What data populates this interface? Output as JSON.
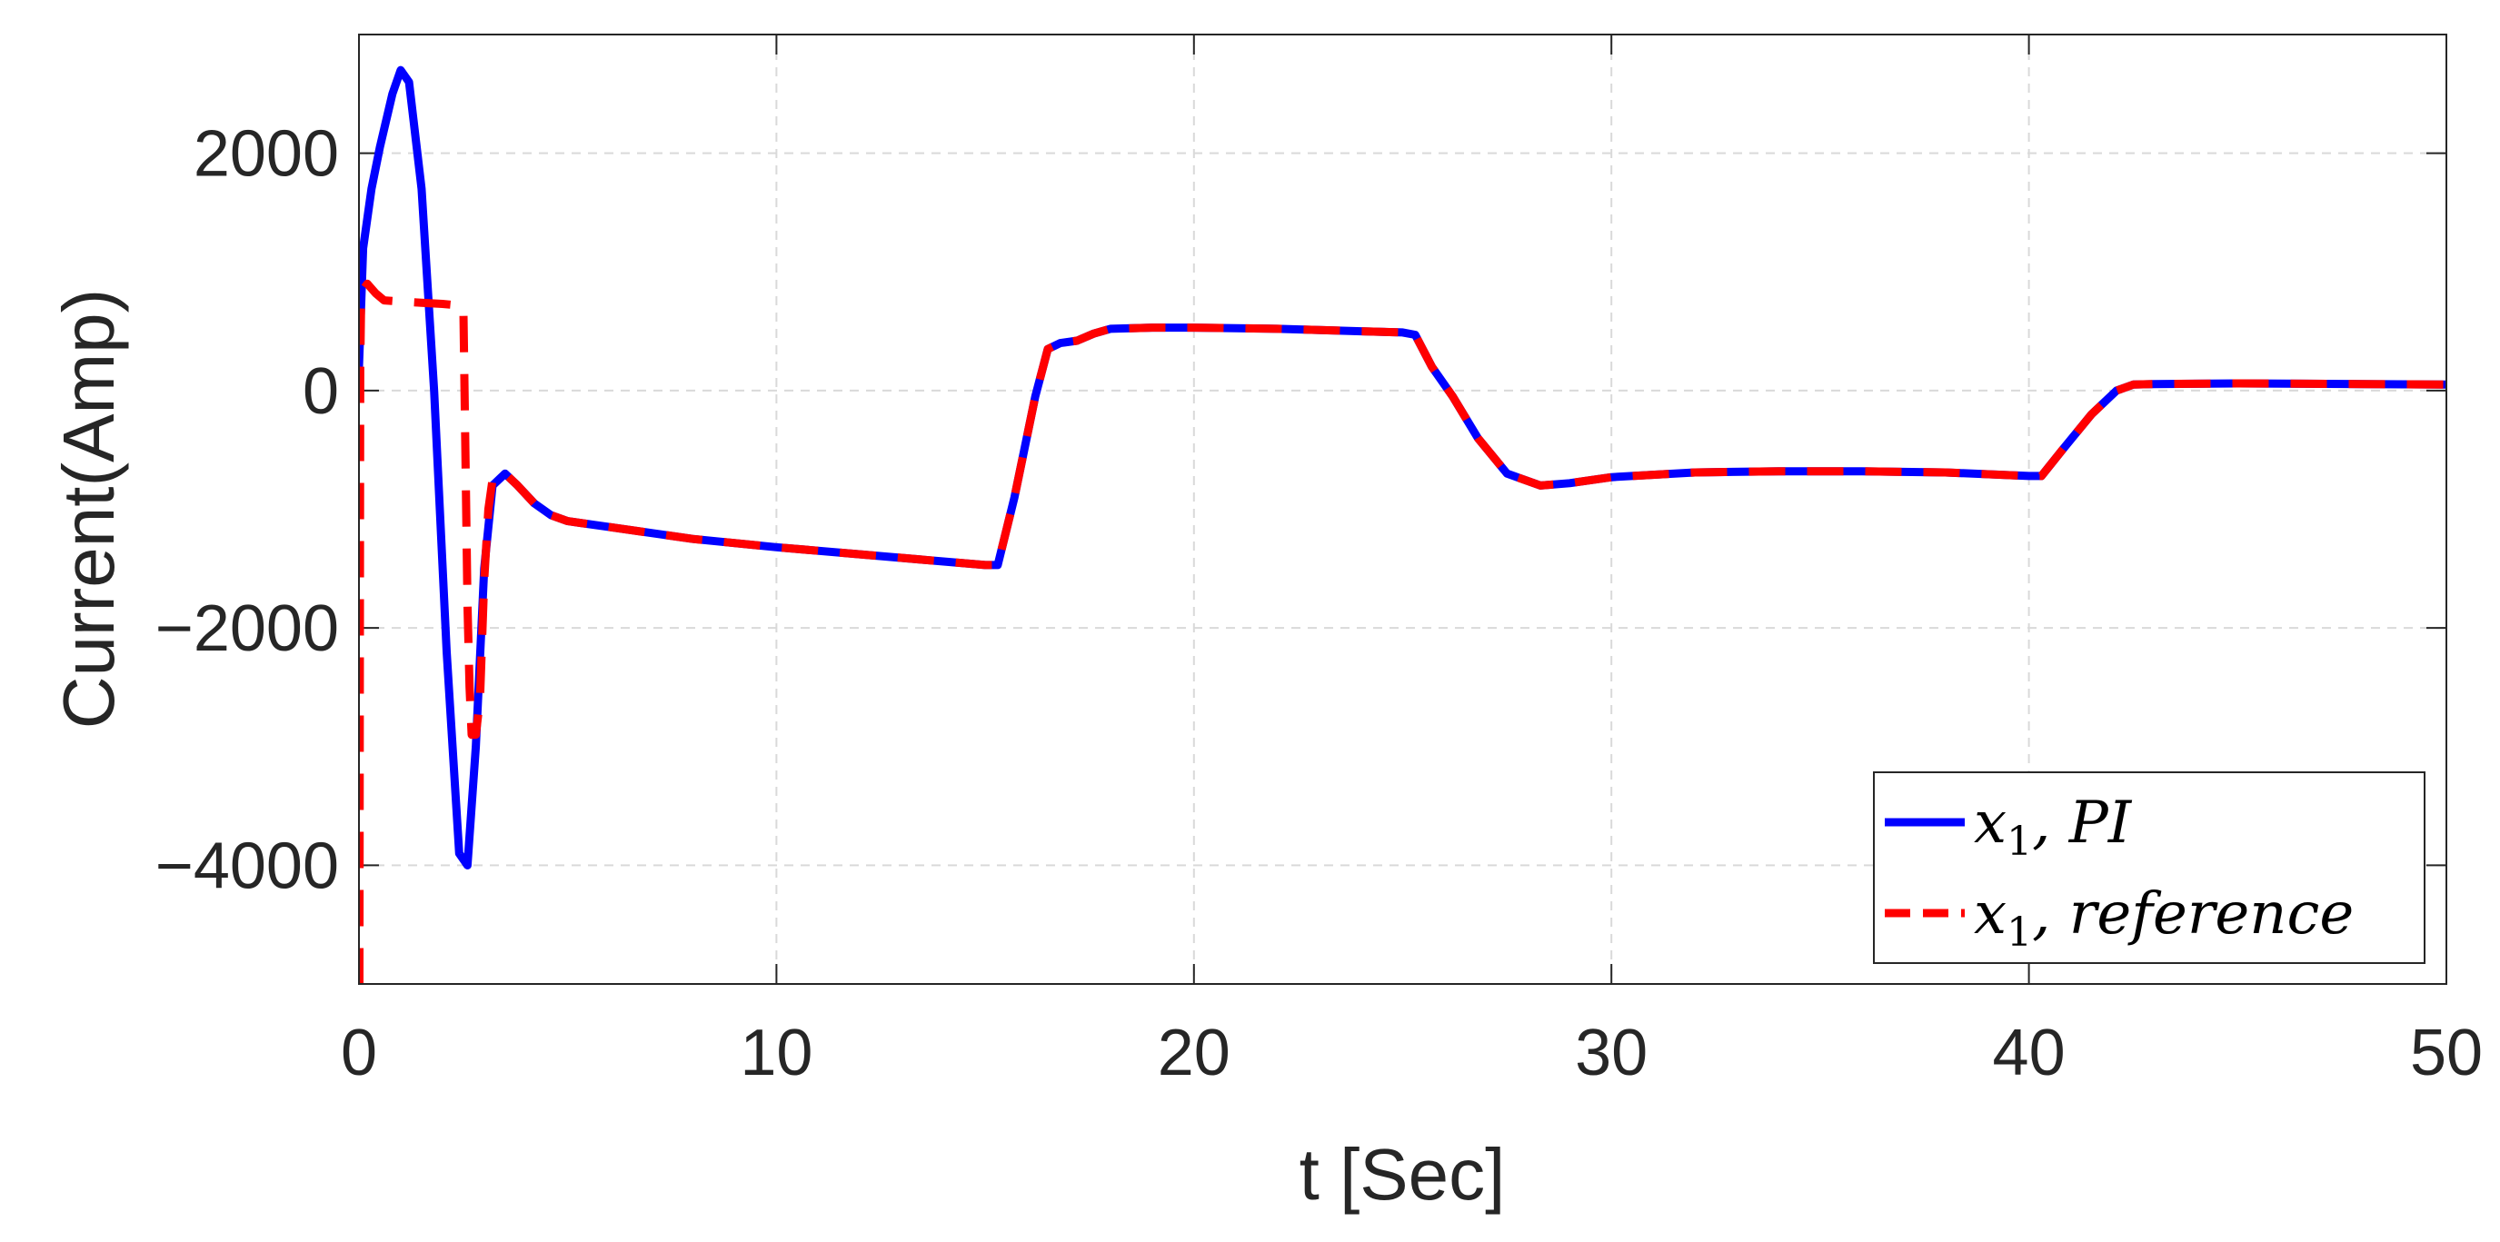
{
  "chart_data": {
    "type": "line",
    "title": "",
    "xlabel": "t [Sec]",
    "ylabel": "Current(Amp)",
    "xlim": [
      0,
      50
    ],
    "ylim": [
      -5000,
      3000
    ],
    "xticks": [
      0,
      10,
      20,
      30,
      40,
      50
    ],
    "xtick_labels": [
      "0",
      "10",
      "20",
      "30",
      "40",
      "50"
    ],
    "yticks": [
      -4000,
      -2000,
      0,
      2000
    ],
    "ytick_labels": [
      "−4000",
      "−2000",
      "0",
      "2000"
    ],
    "grid": true,
    "legend_position": "bottom-right",
    "series": [
      {
        "name": "x1, PI",
        "legend_main": "x",
        "legend_sub": "1",
        "legend_rest": ", PI",
        "color": "#0000ff",
        "style": "solid",
        "x": [
          0,
          0.1,
          0.3,
          0.5,
          0.8,
          1.0,
          1.2,
          1.5,
          1.8,
          2.1,
          2.4,
          2.6,
          2.8,
          3.0,
          3.2,
          3.5,
          3.8,
          4.2,
          4.6,
          5.0,
          6,
          8,
          10,
          12,
          14,
          15,
          15.3,
          15.7,
          16.2,
          16.5,
          16.8,
          17.2,
          17.6,
          18.0,
          19,
          20,
          22,
          24,
          25,
          25.3,
          25.7,
          26.2,
          26.8,
          27.5,
          28.3,
          29,
          30,
          32,
          34,
          36,
          38,
          40,
          40.3,
          40.8,
          41.5,
          42.1,
          42.5,
          43,
          45,
          48,
          50
        ],
        "y": [
          200,
          1200,
          1700,
          2050,
          2500,
          2700,
          2600,
          1700,
          0,
          -2200,
          -3900,
          -4000,
          -3000,
          -1500,
          -800,
          -700,
          -800,
          -950,
          -1050,
          -1100,
          -1150,
          -1250,
          -1320,
          -1380,
          -1440,
          -1470,
          -1470,
          -900,
          -50,
          350,
          400,
          420,
          480,
          520,
          530,
          530,
          520,
          500,
          490,
          470,
          200,
          -50,
          -400,
          -700,
          -800,
          -780,
          -730,
          -690,
          -680,
          -680,
          -690,
          -720,
          -720,
          -500,
          -200,
          0,
          50,
          55,
          60,
          55,
          50
        ]
      },
      {
        "name": "x1, reference",
        "legend_main": "x",
        "legend_sub": "1",
        "legend_rest": ", reference",
        "color": "#ff0000",
        "style": "dashed",
        "x": [
          0.0,
          0.01,
          0.03,
          0.05,
          0.1,
          0.2,
          0.4,
          0.6,
          1.0,
          1.5,
          2.0,
          2.3,
          2.5,
          2.55,
          2.6,
          2.65,
          2.7,
          2.8,
          2.9,
          3.0,
          3.1,
          3.2,
          3.5,
          3.8,
          4.2,
          4.6,
          5.0,
          6,
          8,
          10,
          12,
          14,
          15,
          15.3,
          15.7,
          16.2,
          16.5,
          16.8,
          17.2,
          17.6,
          18.0,
          19,
          20,
          22,
          24,
          25,
          25.3,
          25.7,
          26.2,
          26.8,
          27.5,
          28.3,
          29,
          30,
          32,
          34,
          36,
          38,
          40,
          40.3,
          40.8,
          41.5,
          42.1,
          42.5,
          43,
          45,
          48,
          50
        ],
        "y": [
          -5000,
          -5000,
          200,
          700,
          850,
          900,
          820,
          760,
          750,
          740,
          730,
          720,
          700,
          -500,
          -1800,
          -2500,
          -2900,
          -2900,
          -2600,
          -1600,
          -1000,
          -750,
          -700,
          -800,
          -950,
          -1050,
          -1100,
          -1150,
          -1250,
          -1320,
          -1380,
          -1440,
          -1470,
          -1470,
          -900,
          -50,
          350,
          400,
          420,
          480,
          520,
          530,
          530,
          520,
          500,
          490,
          470,
          200,
          -50,
          -400,
          -700,
          -800,
          -780,
          -730,
          -690,
          -680,
          -680,
          -690,
          -720,
          -720,
          -500,
          -200,
          0,
          50,
          55,
          60,
          55,
          50
        ]
      }
    ]
  }
}
